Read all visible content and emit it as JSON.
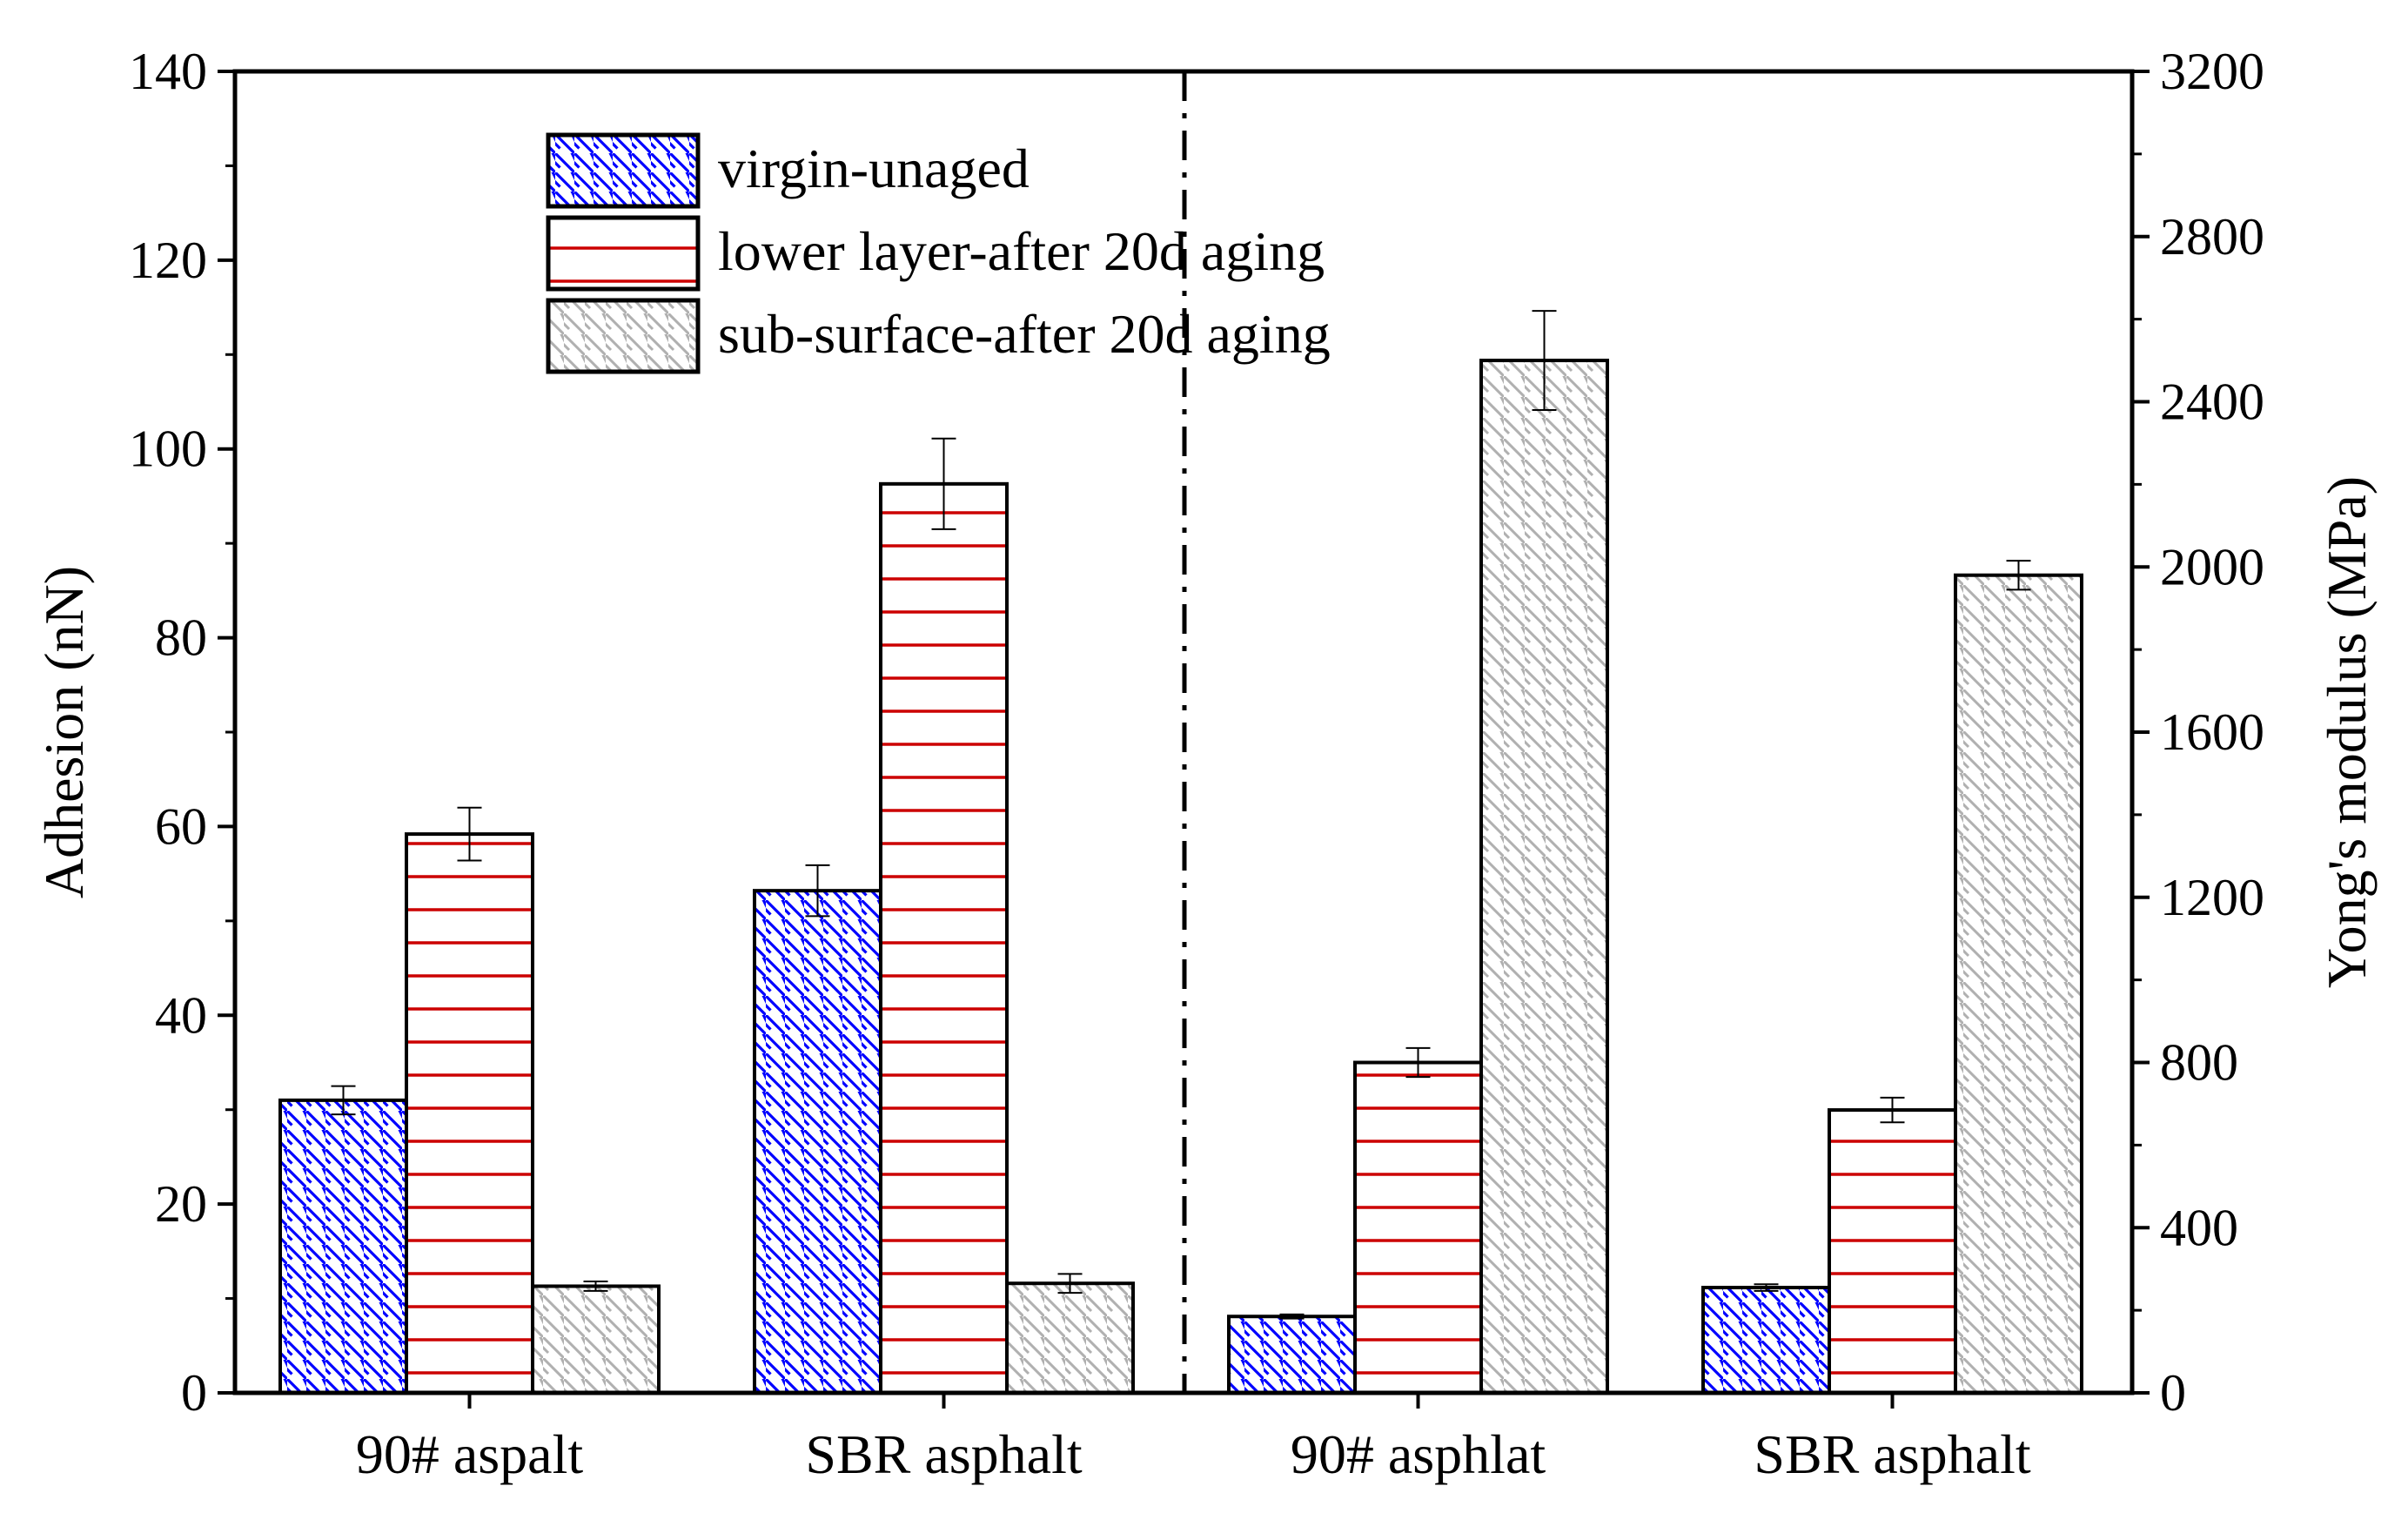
{
  "chart_data": {
    "type": "bar",
    "categories": [
      "90# aspalt",
      "SBR asphalt",
      "90# asphlat",
      "SBR asphalt"
    ],
    "left_axis": {
      "label": "Adhesion (nN)",
      "ylim": [
        0,
        140
      ],
      "ticks": [
        "0",
        "20",
        "40",
        "60",
        "80",
        "100",
        "120",
        "140"
      ]
    },
    "right_axis": {
      "label": "Yong's modulus (MPa)",
      "ylim": [
        0,
        3200
      ],
      "ticks": [
        "0",
        "400",
        "800",
        "1200",
        "1600",
        "2000",
        "2400",
        "2800",
        "3200"
      ]
    },
    "series": [
      {
        "name": "virgin-unaged",
        "color": "#0000ff",
        "pattern": "diagonal-backslash",
        "values_left_axis": [
          31,
          53.2
        ],
        "errors_left_axis": [
          1.5,
          2.7
        ],
        "values_right_axis": [
          185,
          255
        ],
        "errors_right_axis": [
          5,
          8
        ]
      },
      {
        "name": "lower layer-after 20d aging",
        "color": "#cc0000",
        "pattern": "horizontal",
        "values_left_axis": [
          59.2,
          96.3
        ],
        "errors_left_axis": [
          2.8,
          4.8
        ],
        "values_right_axis": [
          800,
          685
        ],
        "errors_right_axis": [
          35,
          30
        ]
      },
      {
        "name": "sub-surface-after 20d aging",
        "color": "#b0b0b0",
        "pattern": "diagonal-backslash",
        "values_left_axis": [
          11.3,
          11.6
        ],
        "errors_left_axis": [
          0.5,
          1.0
        ],
        "values_right_axis": [
          2500,
          1980
        ],
        "errors_right_axis": [
          120,
          35
        ]
      }
    ],
    "divider": "dash-dot vertical line between group 2 and group 3",
    "legend_position": "top-center-left",
    "grid": false
  }
}
